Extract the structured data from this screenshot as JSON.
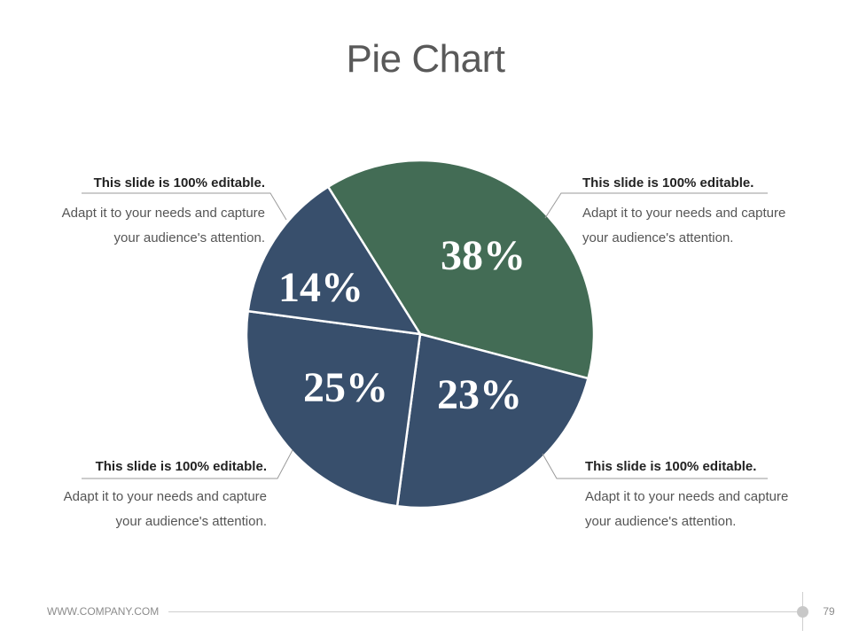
{
  "slide": {
    "title": "Pie Chart"
  },
  "chart_data": {
    "type": "pie",
    "title": "Pie Chart",
    "slices": [
      {
        "label": "38%",
        "value": 38,
        "color": "#436c55"
      },
      {
        "label": "23%",
        "value": 23,
        "color": "#384f6c"
      },
      {
        "label": "25%",
        "value": 25,
        "color": "#384f6c"
      },
      {
        "label": "14%",
        "value": 14,
        "color": "#384f6c"
      }
    ]
  },
  "callouts": [
    {
      "heading": "This slide is 100% editable.",
      "body": "Adapt it to your needs and capture your audience's attention."
    },
    {
      "heading": "This slide is 100% editable.",
      "body": "Adapt it to your needs and capture your audience's attention."
    },
    {
      "heading": "This slide is 100% editable.",
      "body": "Adapt it to your needs and capture your audience's attention."
    },
    {
      "heading": "This slide is 100% editable.",
      "body": "Adapt it to your needs and capture your audience's attention."
    }
  ],
  "footer": {
    "url": "WWW.COMPANY.COM",
    "page": "79"
  }
}
